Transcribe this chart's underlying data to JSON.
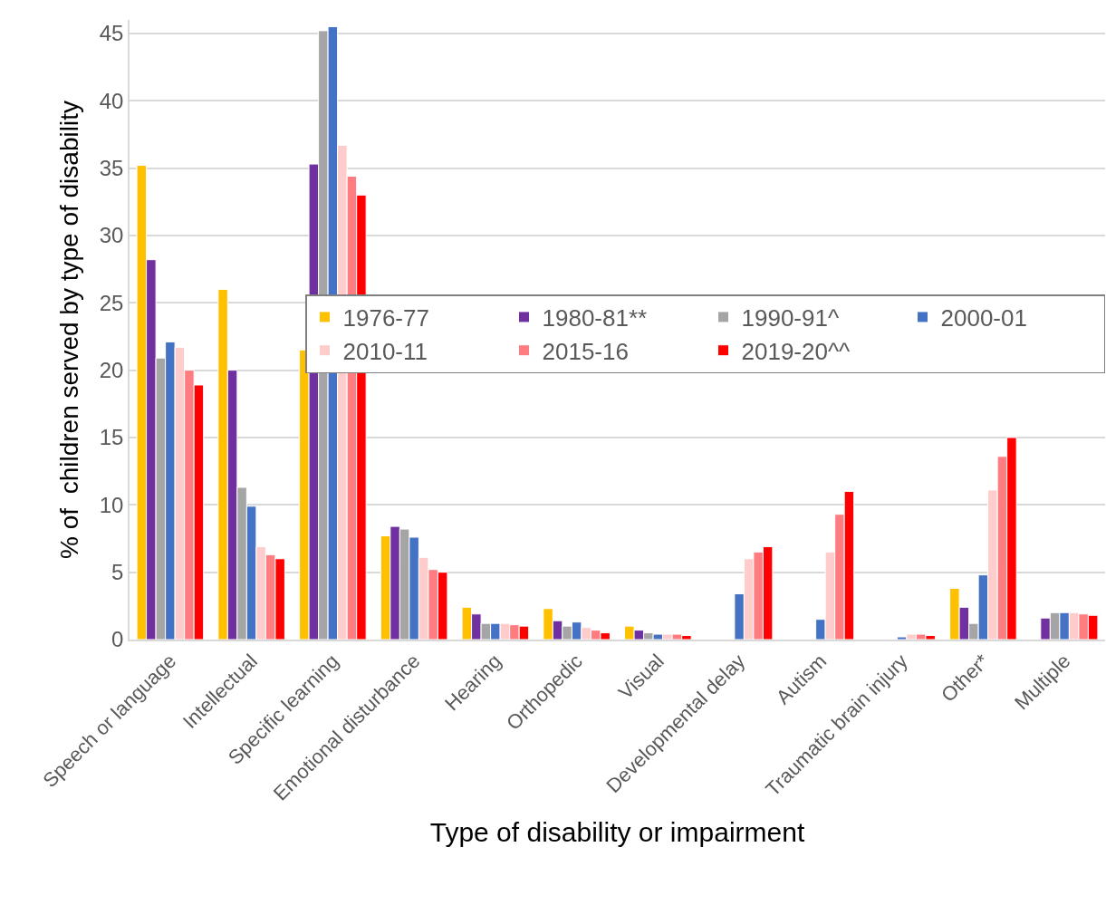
{
  "chart_data": {
    "type": "bar",
    "xlabel": "Type of disability or impairment",
    "ylabel": "% of  children served by type of disability",
    "categories": [
      "Speech or language",
      "Intellectual",
      "Specific learning",
      "Emotional disturbance",
      "Hearing",
      "Orthopedic",
      "Visual",
      "Developmental delay",
      "Autism",
      "Traumatic brain injury",
      "Other*",
      "Multiple"
    ],
    "series": [
      {
        "name": "1976-77",
        "color": "#ffc000",
        "values": [
          35.2,
          26.0,
          21.5,
          7.7,
          2.4,
          2.3,
          1.0,
          null,
          null,
          null,
          3.8,
          null
        ]
      },
      {
        "name": "1980-81**",
        "color": "#7030a0",
        "values": [
          28.2,
          20.0,
          35.3,
          8.4,
          1.9,
          1.4,
          0.7,
          null,
          null,
          null,
          2.4,
          1.6
        ]
      },
      {
        "name": "1990-91^",
        "color": "#a5a5a5",
        "values": [
          20.9,
          11.3,
          45.2,
          8.2,
          1.2,
          1.0,
          0.5,
          null,
          null,
          null,
          1.2,
          2.0
        ]
      },
      {
        "name": "2000-01",
        "color": "#4472c4",
        "values": [
          22.1,
          9.9,
          45.5,
          7.6,
          1.2,
          1.3,
          0.4,
          3.4,
          1.5,
          0.2,
          4.8,
          2.0
        ]
      },
      {
        "name": "2010-11",
        "color": "#ffcccc",
        "values": [
          21.7,
          6.9,
          36.7,
          6.1,
          1.2,
          0.9,
          0.4,
          6.0,
          6.5,
          0.4,
          11.1,
          2.0
        ]
      },
      {
        "name": "2015-16",
        "color": "#ff7c80",
        "values": [
          20.0,
          6.3,
          34.4,
          5.2,
          1.1,
          0.7,
          0.4,
          6.5,
          9.3,
          0.4,
          13.6,
          1.9
        ]
      },
      {
        "name": "2019-20^^",
        "color": "#ff0000",
        "values": [
          18.9,
          6.0,
          33.0,
          5.0,
          1.0,
          0.5,
          0.3,
          6.9,
          11.0,
          0.3,
          15.0,
          1.8
        ]
      }
    ],
    "ylim": [
      0,
      46
    ],
    "yticks": [
      0,
      5,
      10,
      15,
      20,
      25,
      30,
      35,
      40,
      45
    ],
    "grid": "y",
    "legend": "right"
  }
}
